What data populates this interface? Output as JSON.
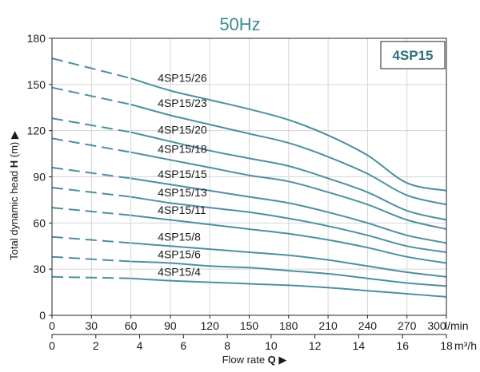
{
  "chart_data": {
    "type": "line",
    "title": "50Hz",
    "model": "4SP15",
    "ylabel_prefix": "Total dynamic head ",
    "ylabel_bold": "H",
    "ylabel_suffix": " (m) ▶",
    "xlabel_prefix": "Flow rate ",
    "xlabel_bold": "Q",
    "xlabel_suffix": " ▶",
    "ylim": [
      0,
      180
    ],
    "xlim": [
      0,
      300
    ],
    "yticks": [
      "0",
      "30",
      "60",
      "90",
      "120",
      "150",
      "180"
    ],
    "xticks_lmin": [
      "0",
      "30",
      "60",
      "90",
      "120",
      "150",
      "180",
      "210",
      "240",
      "270",
      "300"
    ],
    "x_unit_lmin": "l/min",
    "xticks_m3h": [
      "0",
      "2",
      "4",
      "6",
      "8",
      "10",
      "12",
      "14",
      "16",
      "18"
    ],
    "x_unit_m3h": "m³/h",
    "grid": true,
    "line_color": "#4e8fa0",
    "dash_end_lmin": 60,
    "series": [
      {
        "name": "4SP15/26",
        "x": [
          0,
          60,
          90,
          120,
          150,
          180,
          210,
          240,
          270,
          300
        ],
        "y": [
          167,
          154,
          146,
          140,
          134,
          127,
          117,
          104,
          86,
          81
        ]
      },
      {
        "name": "4SP15/23",
        "x": [
          0,
          60,
          90,
          120,
          150,
          180,
          210,
          240,
          270,
          300
        ],
        "y": [
          148,
          137,
          130,
          124,
          118,
          112,
          103,
          92,
          78,
          72
        ]
      },
      {
        "name": "4SP15/20",
        "x": [
          0,
          60,
          90,
          120,
          150,
          180,
          210,
          240,
          270,
          300
        ],
        "y": [
          128,
          119,
          113,
          107,
          102,
          97,
          89,
          80,
          68,
          62
        ]
      },
      {
        "name": "4SP15/18",
        "x": [
          0,
          60,
          90,
          120,
          150,
          180,
          210,
          240,
          270,
          300
        ],
        "y": [
          115,
          106,
          101,
          96,
          91,
          87,
          80,
          72,
          62,
          56
        ]
      },
      {
        "name": "4SP15/15",
        "x": [
          0,
          60,
          90,
          120,
          150,
          180,
          210,
          240,
          270,
          300
        ],
        "y": [
          96,
          89,
          85,
          81,
          77,
          73,
          67,
          60,
          52,
          47
        ]
      },
      {
        "name": "4SP15/13",
        "x": [
          0,
          60,
          90,
          120,
          150,
          180,
          210,
          240,
          270,
          300
        ],
        "y": [
          83,
          77,
          73,
          70,
          67,
          63,
          58,
          52,
          45,
          41
        ]
      },
      {
        "name": "4SP15/11",
        "x": [
          0,
          60,
          90,
          120,
          150,
          180,
          210,
          240,
          270,
          300
        ],
        "y": [
          70,
          65,
          62,
          59,
          56,
          53,
          49,
          44,
          38,
          34
        ]
      },
      {
        "name": "4SP15/8",
        "x": [
          0,
          60,
          90,
          120,
          150,
          180,
          210,
          240,
          270,
          300
        ],
        "y": [
          51,
          47,
          45,
          43,
          41,
          39,
          36,
          32,
          28,
          25
        ]
      },
      {
        "name": "4SP15/6",
        "x": [
          0,
          60,
          90,
          120,
          150,
          180,
          210,
          240,
          270,
          300
        ],
        "y": [
          38,
          35,
          34,
          32,
          31,
          29,
          27,
          24,
          21,
          19
        ]
      },
      {
        "name": "4SP15/4",
        "x": [
          0,
          60,
          90,
          120,
          150,
          180,
          210,
          240,
          270,
          300
        ],
        "y": [
          25,
          24,
          22.5,
          21.5,
          20.5,
          19.5,
          18,
          16,
          14,
          12
        ]
      }
    ]
  }
}
